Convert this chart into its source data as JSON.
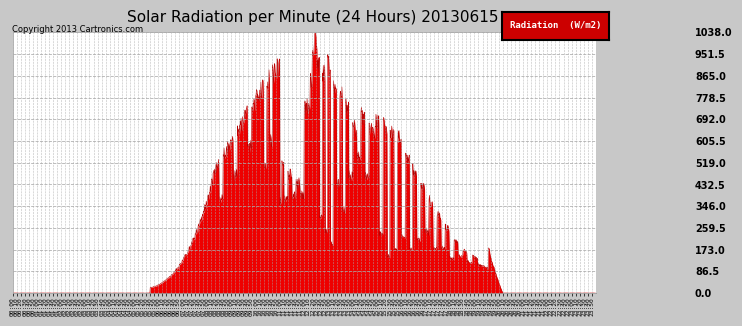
{
  "title": "Solar Radiation per Minute (24 Hours) 20130615",
  "copyright_text": "Copyright 2013 Cartronics.com",
  "ylabel": "Radiation (W/m2)",
  "background_color": "#c8c8c8",
  "plot_bg_color": "#ffffff",
  "fill_color": "#ee0000",
  "line_color": "#cc0000",
  "grid_color": "#b0b0b0",
  "title_fontsize": 11,
  "yticks": [
    0.0,
    86.5,
    173.0,
    259.5,
    346.0,
    432.5,
    519.0,
    605.5,
    692.0,
    778.5,
    865.0,
    951.5,
    1038.0
  ],
  "ymax": 1038.0,
  "total_minutes": 1440,
  "sunrise_min": 320,
  "sunset_min": 1215
}
